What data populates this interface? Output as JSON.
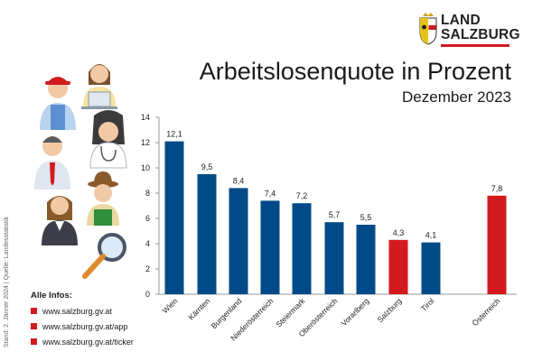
{
  "brand": {
    "line1": "LAND",
    "line2": "SALZBURG",
    "accent_color": "#d21a1f"
  },
  "header": {
    "title": "Arbeitslosenquote in Prozent",
    "subtitle": "Dezember 2023"
  },
  "source_note": "Stand: 2. Jänner 2024 | Quelle: Landesstatistik",
  "infos": {
    "heading": "Alle Infos:",
    "links": [
      "www.salzburg.gv.at",
      "www.salzburg.gv.at/app",
      "www.salzburg.gv.at/ticker"
    ]
  },
  "illustration": {
    "icons": [
      "worker-cap-icon",
      "office-woman-icon",
      "businessman-icon",
      "doctor-icon",
      "farmer-icon",
      "businesswoman-icon",
      "magnifier-icon"
    ]
  },
  "chart_data": {
    "type": "bar",
    "categories": [
      "Wien",
      "Kärnten",
      "Burgenland",
      "Niederösterreich",
      "Steiermark",
      "Oberösterreich",
      "Vorarlberg",
      "Salzburg",
      "Tirol",
      "Österreich"
    ],
    "values": [
      12.1,
      9.5,
      8.4,
      7.4,
      7.2,
      5.7,
      5.5,
      4.3,
      4.1,
      7.8
    ],
    "value_labels": [
      "12,1",
      "9,5",
      "8,4",
      "7,4",
      "7,2",
      "5,7",
      "5,5",
      "4,3",
      "4,1",
      "7,8"
    ],
    "highlight": [
      "Salzburg",
      "Österreich"
    ],
    "colors": {
      "default": "#004b87",
      "highlight": "#d21a1f"
    },
    "ylim": [
      0,
      14
    ],
    "yticks": [
      "0",
      "2",
      "4",
      "6",
      "8",
      "10",
      "12",
      "14"
    ],
    "grid": false,
    "legend": "none"
  }
}
